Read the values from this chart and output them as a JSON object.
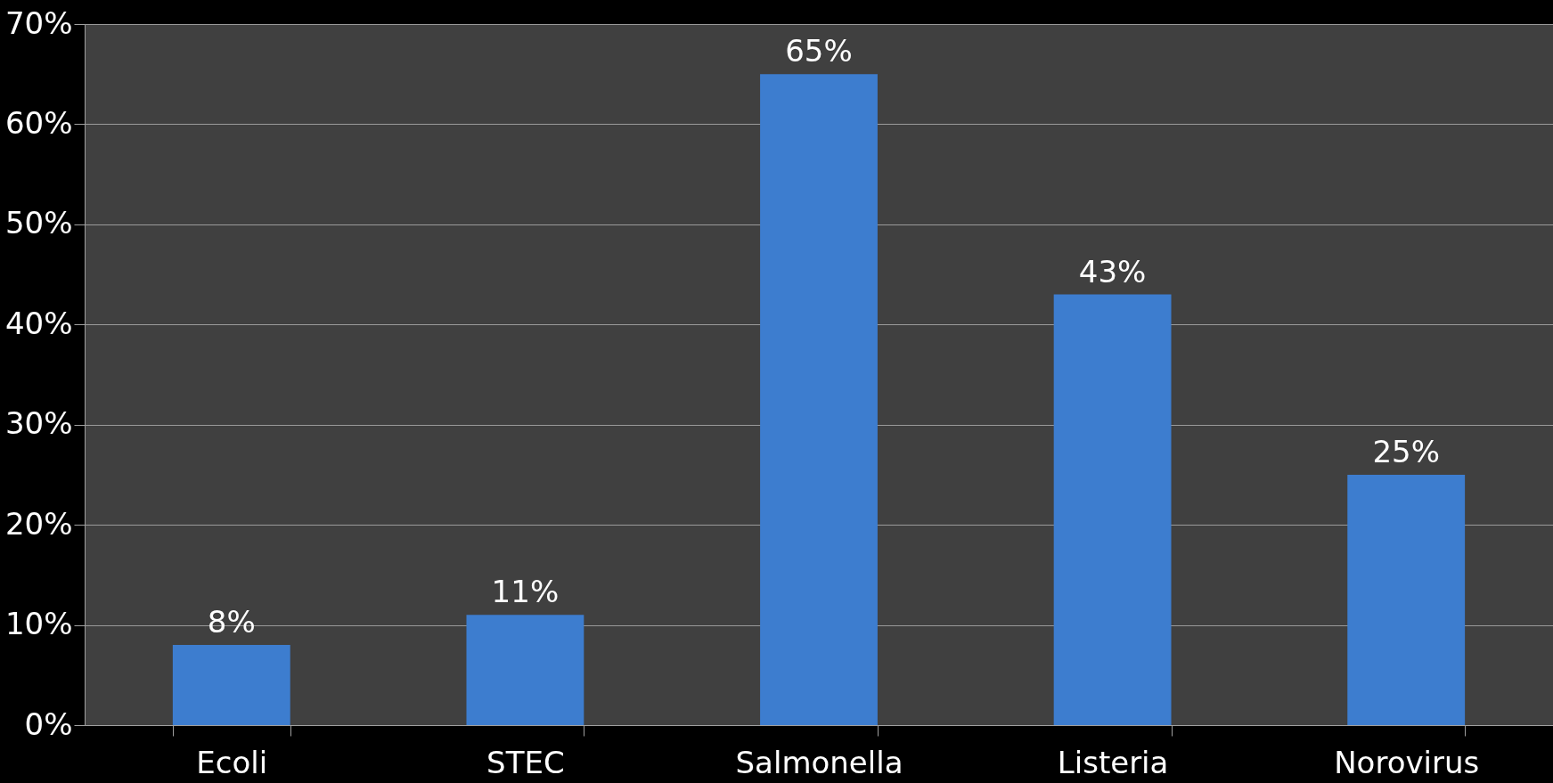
{
  "chart_data": {
    "type": "bar",
    "categories": [
      "Ecoli",
      "STEC",
      "Salmonella",
      "Listeria",
      "Norovirus"
    ],
    "values": [
      8,
      11,
      65,
      43,
      25
    ],
    "value_labels": [
      "8%",
      "11%",
      "65%",
      "43%",
      "25%"
    ],
    "color": "#3d7dcf",
    "ylim": [
      0,
      70
    ],
    "yticks": [
      {
        "value": 0,
        "label": "0%"
      },
      {
        "value": 10,
        "label": "10%"
      },
      {
        "value": 20,
        "label": "20%"
      },
      {
        "value": 30,
        "label": "30%"
      },
      {
        "value": 40,
        "label": "40%"
      },
      {
        "value": 50,
        "label": "50%"
      },
      {
        "value": 60,
        "label": "60%"
      },
      {
        "value": 70,
        "label": "70%"
      }
    ],
    "grid": "y"
  }
}
